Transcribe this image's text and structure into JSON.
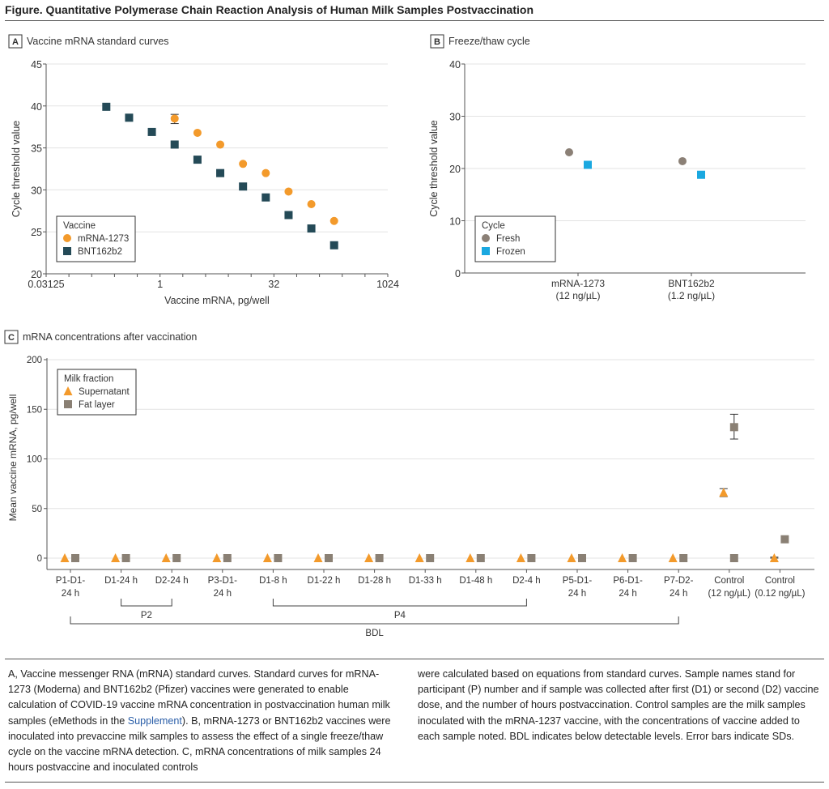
{
  "figure_title": "Figure. Quantitative Polymerase Chain Reaction Analysis of Human Milk Samples Postvaccination",
  "colors": {
    "mRNA-1273": "#f39a2b",
    "BNT162b2": "#244a57",
    "Fresh": "#8b8076",
    "Frozen": "#1aa8e0",
    "Supernatant": "#f39a2b",
    "Fat layer": "#8a8074"
  },
  "chart_data": [
    {
      "panel": "A",
      "title": "Vaccine mRNA standard curves",
      "type": "scatter",
      "xlabel": "Vaccine mRNA, pg/well",
      "ylabel": "Cycle threshold value",
      "xscale": "log2",
      "xlim": [
        0.03125,
        1024
      ],
      "xticklabels": [
        "0.03125",
        "1",
        "32",
        "1024"
      ],
      "ylim": [
        20,
        45
      ],
      "yticks": [
        20,
        25,
        30,
        35,
        40,
        45
      ],
      "grid": "horizontal",
      "legend": {
        "title": "Vaccine",
        "placement": "bottom-left"
      },
      "series": [
        {
          "name": "mRNA-1273",
          "marker": "circle",
          "x": [
            1.56,
            3.125,
            6.25,
            12.5,
            25,
            50,
            100,
            200
          ],
          "y": [
            38.5,
            36.8,
            35.4,
            33.1,
            32.0,
            29.8,
            28.3,
            26.3
          ],
          "error": [
            [
              37.9,
              39.0
            ],
            null,
            null,
            null,
            null,
            null,
            null,
            null
          ]
        },
        {
          "name": "BNT162b2",
          "marker": "square",
          "x": [
            0.195,
            0.39,
            0.78,
            1.56,
            3.125,
            6.25,
            12.5,
            25,
            50,
            100,
            200
          ],
          "y": [
            39.9,
            38.6,
            36.9,
            35.4,
            33.6,
            32.0,
            30.4,
            29.1,
            27.0,
            25.4,
            23.4
          ]
        }
      ]
    },
    {
      "panel": "B",
      "title": "Freeze/thaw cycle",
      "type": "scatter",
      "ylabel": "Cycle threshold value",
      "ylim": [
        0,
        40
      ],
      "yticks": [
        0,
        10,
        20,
        30,
        40
      ],
      "grid": "horizontal",
      "categories": [
        [
          "mRNA-1273",
          "(12 ng/µL)"
        ],
        [
          "BNT162b2",
          "(1.2 ng/µL)"
        ]
      ],
      "legend": {
        "title": "Cycle",
        "placement": "bottom-left"
      },
      "series": [
        {
          "name": "Fresh",
          "marker": "circle",
          "values": [
            23.1,
            21.4
          ]
        },
        {
          "name": "Frozen",
          "marker": "square",
          "values": [
            20.7,
            18.8
          ]
        }
      ]
    },
    {
      "panel": "C",
      "title": "mRNA concentrations after vaccination",
      "type": "scatter",
      "ylabel": "Mean vaccine mRNA, pg/well",
      "ylim": [
        0,
        200
      ],
      "yticks": [
        0,
        50,
        100,
        150,
        200
      ],
      "grid": "horizontal",
      "categories": [
        [
          "P1-D1-",
          "24 h"
        ],
        [
          "D1-24 h",
          ""
        ],
        [
          "D2-24 h",
          ""
        ],
        [
          "P3-D1-",
          "24 h"
        ],
        [
          "D1-8 h",
          ""
        ],
        [
          "D1-22 h",
          ""
        ],
        [
          "D1-28 h",
          ""
        ],
        [
          "D1-33 h",
          ""
        ],
        [
          "D1-48 h",
          ""
        ],
        [
          "D2-4 h",
          ""
        ],
        [
          "P5-D1-",
          "24 h"
        ],
        [
          "P6-D1-",
          "24 h"
        ],
        [
          "P7-D2-",
          "24 h"
        ],
        [
          "Control",
          "(12 ng/µL)"
        ],
        [
          "Control",
          "(0.12 ng/µL)"
        ]
      ],
      "legend": {
        "title": "Milk fraction",
        "placement": "top-left"
      },
      "series": [
        {
          "name": "Supernatant",
          "marker": "triangle",
          "values": [
            0,
            0,
            0,
            0,
            0,
            0,
            0,
            0,
            0,
            0,
            0,
            0,
            0,
            66,
            0
          ],
          "error": [
            null,
            null,
            null,
            null,
            null,
            null,
            null,
            null,
            null,
            null,
            null,
            null,
            null,
            [
              62,
              70
            ],
            [
              0,
              1
            ]
          ]
        },
        {
          "name": "Fat layer",
          "marker": "square",
          "values": [
            0,
            0,
            0,
            0,
            0,
            0,
            0,
            0,
            0,
            0,
            0,
            0,
            0,
            132,
            19
          ],
          "extra_points": [
            {
              "category": 13,
              "value": 0
            }
          ],
          "error": [
            null,
            null,
            null,
            null,
            null,
            null,
            null,
            null,
            null,
            null,
            null,
            null,
            null,
            [
              120,
              145
            ],
            null
          ]
        }
      ],
      "brackets": [
        {
          "label": "P2",
          "from": 1,
          "to": 2
        },
        {
          "label": "P4",
          "from": 4,
          "to": 9
        },
        {
          "label": "BDL",
          "from": 0,
          "to": 12
        }
      ]
    }
  ],
  "caption": {
    "left": "A, Vaccine messenger RNA (mRNA) standard curves. Standard curves for mRNA-1273 (Moderna) and BNT162b2 (Pfizer) vaccines were generated to enable calculation of COVID-19 vaccine mRNA concentration in postvaccination human milk samples (eMethods in the ",
    "link": "Supplement",
    "left_end": "). B, mRNA-1273 or BNT162b2 vaccines were inoculated into prevaccine milk samples to assess the effect of a single freeze/thaw cycle on the vaccine mRNA detection. C, mRNA concentrations of milk samples 24 hours postvaccine and inoculated controls",
    "right": "were calculated based on equations from standard curves. Sample names stand for participant (P) number and if sample was collected after first (D1) or second (D2) vaccine dose, and the number of hours postvaccination. Control samples are the milk samples inoculated with the mRNA-1237 vaccine, with the concentrations of vaccine added to each sample noted. BDL indicates below detectable levels. Error bars indicate SDs."
  }
}
